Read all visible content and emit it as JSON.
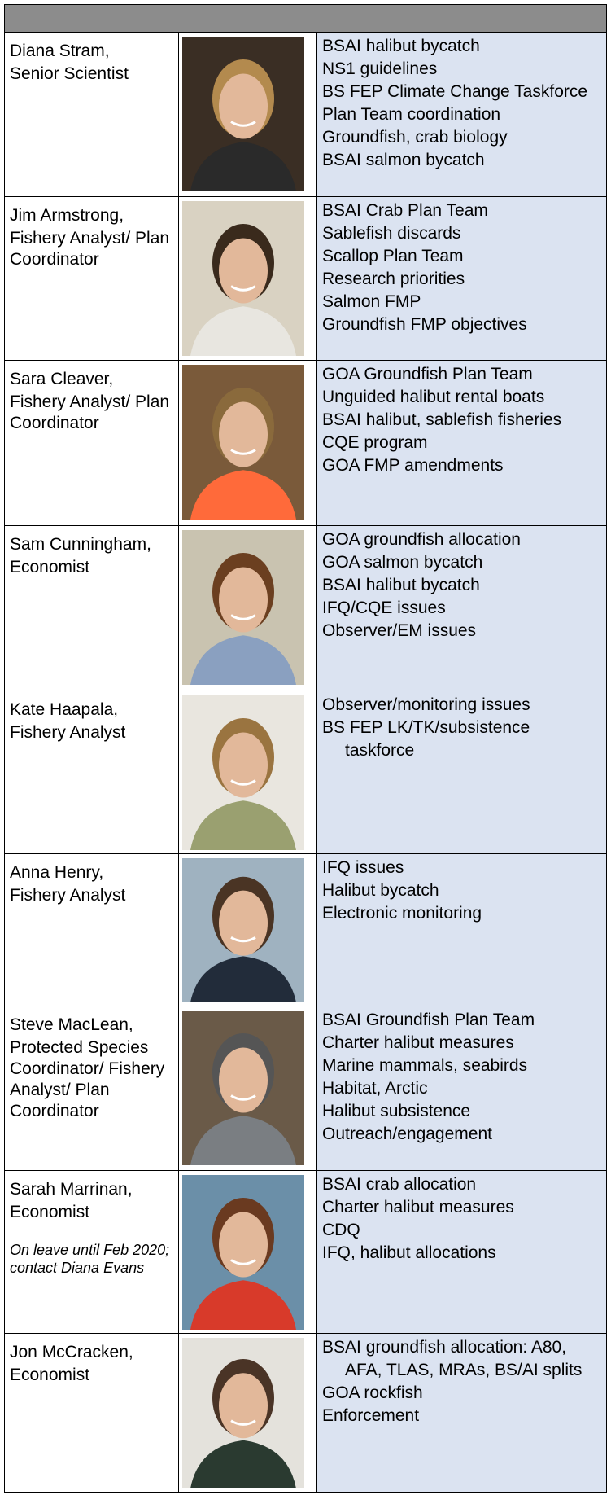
{
  "staff": [
    {
      "name": "Diana Stram,",
      "title": "Senior Scientist",
      "tasks": [
        "BSAI halibut bycatch",
        "NS1 guidelines",
        "BS FEP Climate Change Taskforce",
        "Plan Team coordination",
        "Groundfish, crab biology",
        "BSAI salmon bycatch"
      ]
    },
    {
      "name": "Jim Armstrong,",
      "title": "Fishery Analyst/ Plan Coordinator",
      "tasks": [
        "BSAI Crab Plan Team",
        "Sablefish discards",
        "Scallop Plan Team",
        "Research priorities",
        "Salmon FMP",
        "Groundfish FMP objectives"
      ]
    },
    {
      "name": "Sara Cleaver,",
      "title": "Fishery Analyst/ Plan Coordinator",
      "tasks": [
        "GOA Groundfish Plan Team",
        "Unguided halibut rental boats",
        "BSAI halibut, sablefish fisheries",
        "CQE program",
        "GOA FMP amendments"
      ]
    },
    {
      "name": "Sam Cunningham,",
      "title": "Economist",
      "tasks": [
        "GOA groundfish allocation",
        "GOA salmon bycatch",
        "BSAI halibut bycatch",
        "IFQ/CQE issues",
        "Observer/EM issues"
      ]
    },
    {
      "name": "Kate Haapala,",
      "title": "Fishery Analyst",
      "tasks": [
        "Observer/monitoring issues",
        "BS FEP LK/TK/subsistence taskforce"
      ]
    },
    {
      "name": "Anna Henry,",
      "title": "Fishery Analyst",
      "tasks": [
        "IFQ issues",
        "Halibut bycatch",
        "Electronic monitoring"
      ]
    },
    {
      "name": "Steve MacLean,",
      "title": "Protected Species Coordinator/ Fishery Analyst/ Plan Coordinator",
      "tasks": [
        "BSAI Groundfish Plan Team",
        "Charter halibut measures",
        "Marine mammals, seabirds",
        "Habitat, Arctic",
        "Halibut subsistence",
        "Outreach/engagement"
      ]
    },
    {
      "name": "Sarah Marrinan,",
      "title": "Economist",
      "note": "On leave until Feb 2020; contact Diana Evans",
      "tasks": [
        "BSAI crab allocation",
        "Charter halibut measures",
        "CDQ",
        "IFQ, halibut allocations"
      ]
    },
    {
      "name": "Jon McCracken,",
      "title": "Economist",
      "tasks": [
        "BSAI groundfish allocation: A80, AFA, TLAS, MRAs, BS/AI splits",
        "GOA rockfish",
        "Enforcement"
      ]
    }
  ]
}
